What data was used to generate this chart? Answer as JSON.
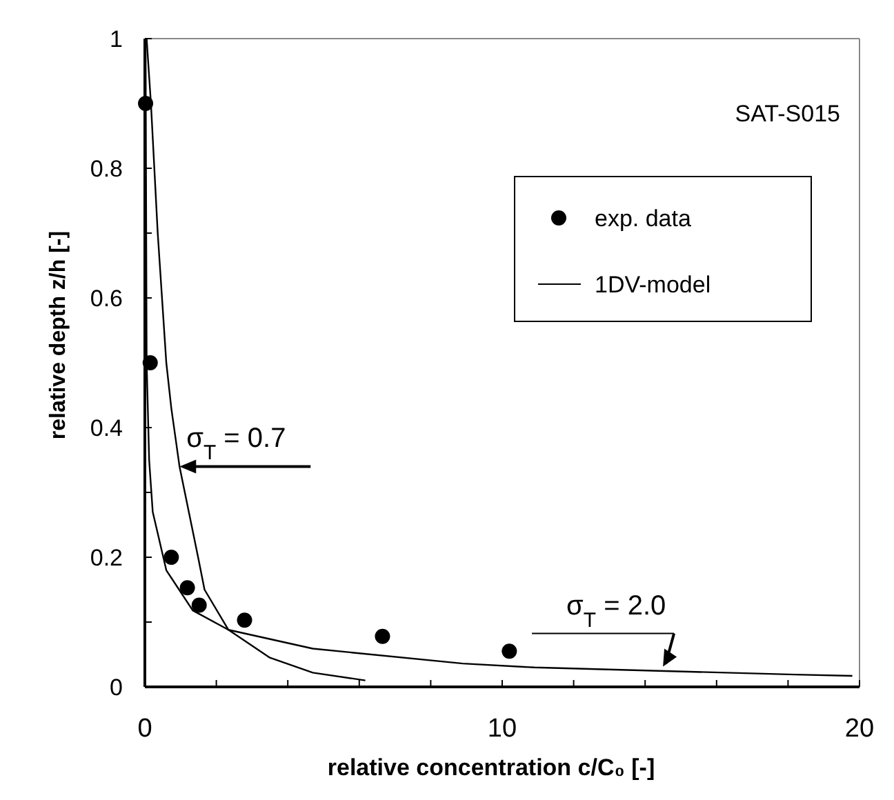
{
  "chart_data": {
    "type": "scatter",
    "xlabel": "relative concentration c/C₀ [-]",
    "ylabel": "relative depth z/h [-]",
    "xlim": [
      0,
      20
    ],
    "ylim": [
      0,
      1
    ],
    "xticks": [
      0,
      {
        "value": 2,
        "label": null
      },
      {
        "value": 4,
        "label": null
      },
      {
        "value": 6,
        "label": null
      },
      {
        "value": 8,
        "label": null
      },
      10,
      {
        "value": 12,
        "label": null
      },
      {
        "value": 14,
        "label": null
      },
      {
        "value": 16,
        "label": null
      },
      {
        "value": 18,
        "label": null
      },
      20
    ],
    "yticks": [
      0,
      {
        "value": 0.1,
        "label": null
      },
      0.2,
      {
        "value": 0.3,
        "label": null
      },
      0.4,
      {
        "value": 0.5,
        "label": null
      },
      0.6,
      {
        "value": 0.7,
        "label": null
      },
      0.8,
      {
        "value": 0.9,
        "label": null
      },
      1
    ],
    "series": [
      {
        "name": "exp. data",
        "color": "#000000",
        "marker": "circle",
        "x": [
          0.02,
          0.15,
          0.74,
          1.19,
          1.52,
          2.79,
          6.65,
          10.2
        ],
        "values": [
          0.9,
          0.5,
          0.2,
          0.153,
          0.126,
          0.103,
          0.078,
          0.055
        ]
      },
      {
        "name": "1DV-model",
        "type": "line",
        "color": "#000000",
        "x": [
          0.05,
          0.17,
          0.36,
          0.6,
          0.74,
          0.97,
          1.49,
          1.67,
          2.34,
          3.5,
          4.7,
          6.17
        ],
        "values": [
          1,
          0.9,
          0.7,
          0.5,
          0.43,
          0.34,
          0.2,
          0.15,
          0.088,
          0.045,
          0.022,
          0.01
        ]
      },
      {
        "type": "line",
        "color": "#000000",
        "x": [
          0.02,
          0.05,
          0.12,
          0.22,
          0.6,
          1.34,
          2.34,
          4.7,
          8.9,
          10.9,
          14.2,
          18.2,
          19.8
        ],
        "values": [
          1,
          0.5,
          0.35,
          0.27,
          0.18,
          0.118,
          0.088,
          0.059,
          0.036,
          0.03,
          0.025,
          0.019,
          0.017
        ]
      }
    ],
    "annotations": [
      "SAT-S015",
      {
        "text": "σ$_{T}$ = 0.7",
        "x": 0.97,
        "y": 0.34
      },
      {
        "text": "σ$_{T}$ = 2.0",
        "x": 14.5,
        "y": 0.025
      }
    ],
    "legend": "top right",
    "grid": false
  }
}
